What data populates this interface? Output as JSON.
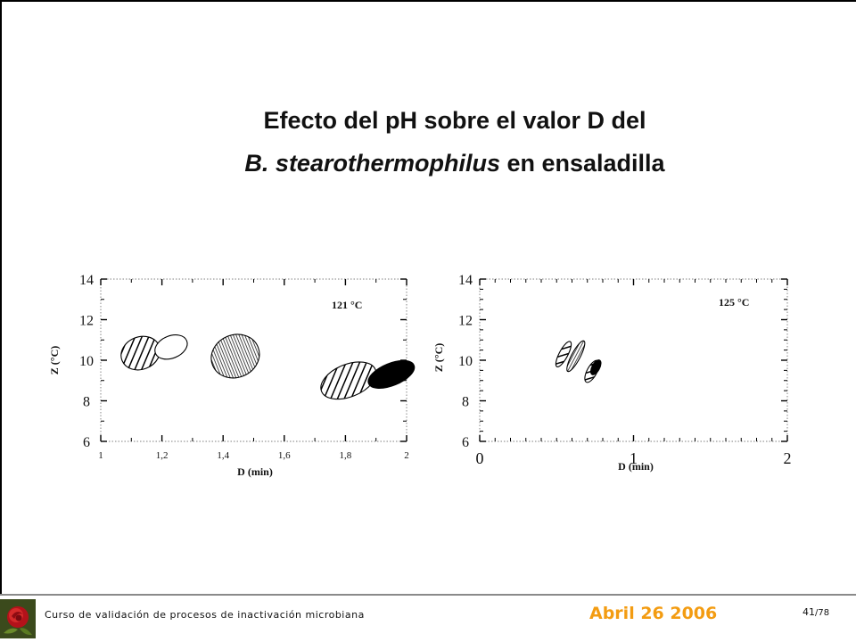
{
  "slide": {
    "title_line1": "Efecto del pH sobre el valor D del",
    "title_line2_italic": "B. stearothermophilus",
    "title_line2_rest": " en ensaladilla"
  },
  "footer": {
    "course": "Curso de validación de procesos de inactivación microbiana",
    "date": "Abril 26 2006",
    "page": "41",
    "total": "/78",
    "logo_icon": "rose-icon"
  },
  "chart_data": [
    {
      "type": "scatter",
      "annotation": "121 °C",
      "xlabel": "D (min)",
      "ylabel": "Z (°C)",
      "xlim": [
        1,
        2
      ],
      "ylim": [
        6,
        14
      ],
      "x_ticks": [
        "1",
        "1,2",
        "1,4",
        "1,6",
        "1,8",
        "2"
      ],
      "y_ticks": [
        "6",
        "8",
        "10",
        "12",
        "14"
      ],
      "regions": [
        {
          "fill": "diagonal-hatch",
          "cx": 1.13,
          "cy": 10.35,
          "rx": 0.065,
          "ry": 0.8
        },
        {
          "fill": "none",
          "cx": 1.23,
          "cy": 10.65,
          "rx": 0.055,
          "ry": 0.55
        },
        {
          "fill": "vertical-hatch",
          "cx": 1.44,
          "cy": 10.2,
          "rx": 0.08,
          "ry": 1.05
        },
        {
          "fill": "diagonal-hatch",
          "cx": 1.81,
          "cy": 9.0,
          "rx": 0.095,
          "ry": 0.8
        },
        {
          "fill": "solid",
          "cx": 1.95,
          "cy": 9.3,
          "rx": 0.08,
          "ry": 0.55
        }
      ]
    },
    {
      "type": "scatter",
      "annotation": "125 °C",
      "xlabel": "D (min)",
      "ylabel": "Z (°C)",
      "xlim": [
        0,
        2
      ],
      "ylim": [
        6,
        14
      ],
      "x_ticks": [
        "0",
        "1",
        "2"
      ],
      "y_ticks": [
        "6",
        "8",
        "10",
        "12",
        "14"
      ],
      "regions": [
        {
          "fill": "diagonal-hatch",
          "cx": 0.545,
          "cy": 10.3,
          "rx": 0.028,
          "ry": 0.7
        },
        {
          "fill": "vertical-hatch",
          "cx": 0.625,
          "cy": 10.2,
          "rx": 0.028,
          "ry": 0.85
        },
        {
          "fill": "diagonal-hatch",
          "cx": 0.73,
          "cy": 9.45,
          "rx": 0.032,
          "ry": 0.6
        },
        {
          "fill": "solid",
          "cx": 0.755,
          "cy": 9.65,
          "rx": 0.025,
          "ry": 0.4
        }
      ]
    }
  ]
}
